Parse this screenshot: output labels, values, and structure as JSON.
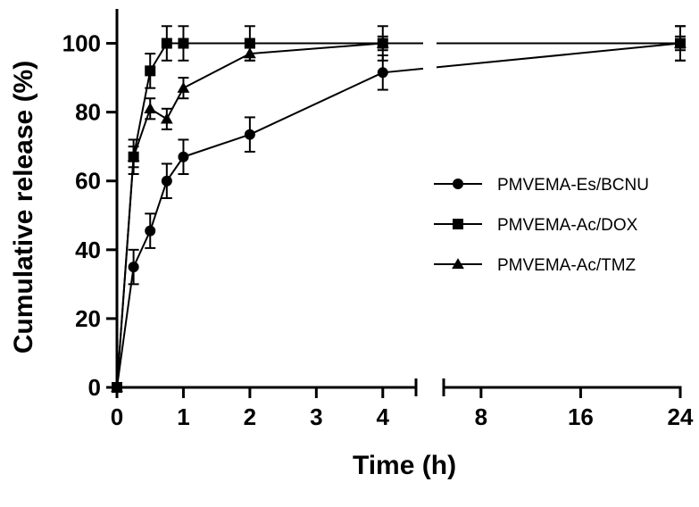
{
  "chart_data": {
    "type": "line",
    "xlabel": "Time (h)",
    "ylabel": "Cumulative release (%)",
    "ylim": [
      0,
      110
    ],
    "x_axis_segments": [
      {
        "range": [
          0,
          4.5
        ],
        "ticks": [
          0,
          1,
          2,
          3,
          4
        ],
        "tick_labels": [
          "0",
          "1",
          "2",
          "3",
          "4"
        ]
      },
      {
        "range": [
          5,
          24
        ],
        "ticks": [
          8,
          16,
          24
        ],
        "tick_labels": [
          "8",
          "16",
          "24"
        ]
      }
    ],
    "y_ticks": [
      0,
      20,
      40,
      60,
      80,
      100
    ],
    "y_tick_labels": [
      "0",
      "20",
      "40",
      "60",
      "80",
      "100"
    ],
    "legend_position": "right",
    "series": [
      {
        "name": "PMVEMA-Es/BCNU",
        "marker": "circle",
        "x": [
          0,
          0.25,
          0.5,
          0.75,
          1,
          2,
          4,
          24
        ],
        "y": [
          0,
          35,
          45.5,
          60,
          67,
          73.5,
          91.5,
          100
        ],
        "err": [
          0,
          5,
          5,
          5,
          5,
          5,
          5,
          5
        ]
      },
      {
        "name": "PMVEMA-Ac/DOX",
        "marker": "square",
        "x": [
          0,
          0.25,
          0.5,
          0.75,
          1,
          2,
          4,
          24
        ],
        "y": [
          0,
          67,
          92,
          100,
          100,
          100,
          100,
          100
        ],
        "err": [
          0,
          5,
          5,
          5,
          5,
          5,
          5,
          5
        ]
      },
      {
        "name": "PMVEMA-Ac/TMZ",
        "marker": "triangle",
        "x": [
          0,
          0.25,
          0.5,
          0.75,
          1,
          2,
          4,
          24
        ],
        "y": [
          0,
          67,
          81,
          78,
          87,
          97,
          100,
          100
        ],
        "err": [
          0,
          3,
          3,
          3,
          3,
          2,
          2,
          2
        ]
      }
    ]
  }
}
